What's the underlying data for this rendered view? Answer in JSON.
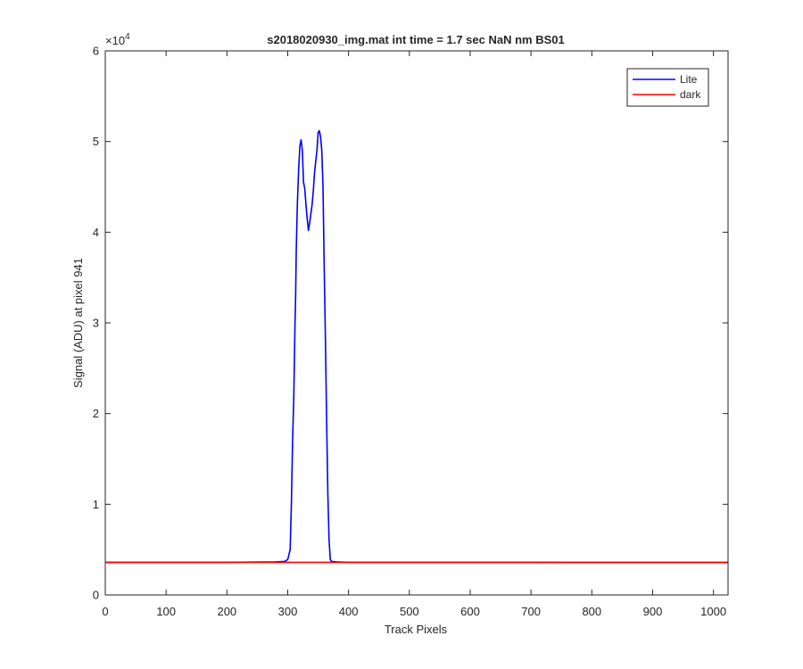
{
  "figure": {
    "background": "#ffffff"
  },
  "chart_data": {
    "type": "line",
    "title": "s2018020930_img.mat int time = 1.7 sec  NaN nm BS01",
    "xlabel": "Track Pixels",
    "ylabel": "Signal (ADU) at pixel 941",
    "y_exponent_label": "×10",
    "y_exponent_power": "4",
    "xlim": [
      0,
      1024
    ],
    "ylim": [
      0,
      60000
    ],
    "x_ticks": [
      0,
      100,
      200,
      300,
      400,
      500,
      600,
      700,
      800,
      900,
      1000
    ],
    "x_tick_labels": [
      "0",
      "100",
      "200",
      "300",
      "400",
      "500",
      "600",
      "700",
      "800",
      "900",
      "1000"
    ],
    "y_ticks": [
      0,
      10000,
      20000,
      30000,
      40000,
      50000,
      60000
    ],
    "y_tick_labels": [
      "0",
      "1",
      "2",
      "3",
      "4",
      "5",
      "6"
    ],
    "grid": false,
    "legend_position": "top-right",
    "series": [
      {
        "name": "Lite",
        "color": "#0000ff",
        "x": [
          0,
          100,
          200,
          280,
          295,
          300,
          304,
          306,
          308,
          310,
          312,
          313,
          314,
          316,
          318,
          320,
          322,
          324,
          326,
          328,
          330,
          332,
          334,
          336,
          338,
          340,
          342,
          344,
          346,
          348,
          350,
          352,
          354,
          356,
          358,
          360,
          362,
          364,
          366,
          368,
          370,
          372,
          380,
          400,
          500,
          600,
          700,
          800,
          900,
          1024
        ],
        "y": [
          3600,
          3600,
          3600,
          3650,
          3700,
          3900,
          5000,
          10000,
          17000,
          22000,
          30000,
          33000,
          38000,
          43500,
          47000,
          49500,
          50200,
          49000,
          45500,
          44800,
          43000,
          41500,
          40200,
          41000,
          42000,
          43000,
          44500,
          46500,
          47800,
          49000,
          51000,
          51200,
          50500,
          49000,
          45000,
          36000,
          28000,
          19000,
          11000,
          6000,
          3900,
          3700,
          3650,
          3600,
          3600,
          3600,
          3600,
          3580,
          3580,
          3580
        ]
      },
      {
        "name": "dark",
        "color": "#ff0000",
        "x": [
          0,
          1024
        ],
        "y": [
          3600,
          3600
        ]
      }
    ]
  }
}
